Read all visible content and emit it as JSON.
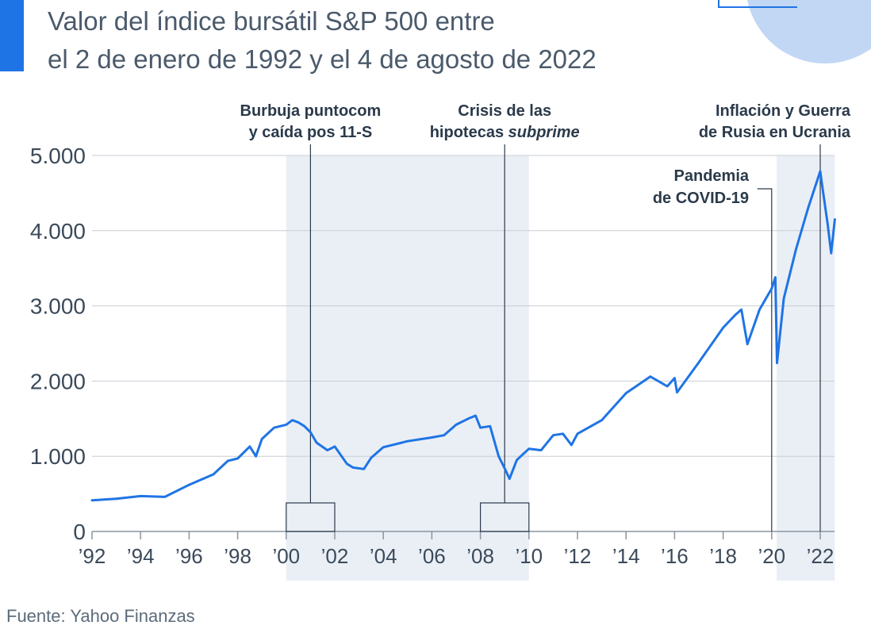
{
  "header": {
    "title_line1": "Valor del índice bursátil S&P 500 entre",
    "title_line2": "el 2 de enero de 1992 y el 4 de agosto de 2022",
    "accent_color": "#1f74e5"
  },
  "footer": {
    "source": "Fuente: Yahoo Finanzas"
  },
  "chart_data": {
    "type": "line",
    "title": "Valor del índice bursátil S&P 500 entre el 2 de enero de 1992 y el 4 de agosto de 2022",
    "xlim": [
      1992,
      2022.6
    ],
    "ylim": [
      0,
      5000
    ],
    "yticks": [
      0,
      1000,
      2000,
      3000,
      4000,
      5000
    ],
    "ytick_labels": [
      "0",
      "1.000",
      "2.000",
      "3.000",
      "4.000",
      "5.000"
    ],
    "xticks": [
      1992,
      1994,
      1996,
      1998,
      2000,
      2002,
      2004,
      2006,
      2008,
      2010,
      2012,
      2014,
      2016,
      2018,
      2020,
      2022
    ],
    "xtick_labels": [
      "’92",
      "’94",
      "’96",
      "’98",
      "’00",
      "’02",
      "’04",
      "’06",
      "’08",
      "’10",
      "’12",
      "’14",
      "’16",
      "’18",
      "’20",
      "’22"
    ],
    "grid": true,
    "line_color": "#1f74e5",
    "shaded_periods": [
      [
        2000,
        2010
      ],
      [
        2020.2,
        2022.6
      ]
    ],
    "series": [
      {
        "x": [
          1992.0,
          1993.0,
          1994.0,
          1995.0,
          1996.0,
          1997.0,
          1997.6,
          1998.0,
          1998.5,
          1998.75,
          1999.0,
          1999.5,
          2000.0,
          2000.25,
          2000.5,
          2000.75,
          2001.0,
          2001.25,
          2001.7,
          2002.0,
          2002.5,
          2002.75,
          2003.2,
          2003.5,
          2004.0,
          2005.0,
          2006.0,
          2006.5,
          2007.0,
          2007.5,
          2007.8,
          2008.0,
          2008.4,
          2008.75,
          2009.0,
          2009.2,
          2009.5,
          2010.0,
          2010.5,
          2011.0,
          2011.4,
          2011.75,
          2012.0,
          2013.0,
          2014.0,
          2015.0,
          2015.7,
          2016.0,
          2016.1,
          2017.0,
          2018.0,
          2018.5,
          2018.75,
          2019.0,
          2019.5,
          2020.0,
          2020.15,
          2020.22,
          2020.5,
          2021.0,
          2021.5,
          2022.0,
          2022.1,
          2022.3,
          2022.45,
          2022.6
        ],
        "y": [
          415,
          435,
          470,
          460,
          620,
          760,
          940,
          970,
          1130,
          1000,
          1230,
          1380,
          1420,
          1480,
          1450,
          1400,
          1320,
          1180,
          1080,
          1130,
          900,
          850,
          830,
          980,
          1120,
          1200,
          1250,
          1280,
          1420,
          1500,
          1540,
          1380,
          1400,
          1000,
          840,
          700,
          950,
          1100,
          1080,
          1280,
          1300,
          1150,
          1300,
          1480,
          1840,
          2060,
          1930,
          2040,
          1850,
          2250,
          2710,
          2880,
          2950,
          2490,
          2950,
          3230,
          3380,
          2240,
          3100,
          3750,
          4300,
          4790,
          4550,
          4100,
          3700,
          4150
        ]
      }
    ],
    "annotations": [
      {
        "text_line1": "Burbuja puntocom",
        "text_line2": "y caída pos 11-S",
        "x": 2001.0
      },
      {
        "text_line1": "Crisis de las",
        "text_line2_plain": "hipotecas ",
        "text_line2_italic": "subprime",
        "x": 2009.0
      },
      {
        "text_line1": "Pandemia",
        "text_line2": "de COVID-19",
        "x": 2020.0
      },
      {
        "text_line1": "Inflación y Guerra",
        "text_line2": "de Rusia en Ucrania",
        "x": 2022.0
      }
    ]
  }
}
